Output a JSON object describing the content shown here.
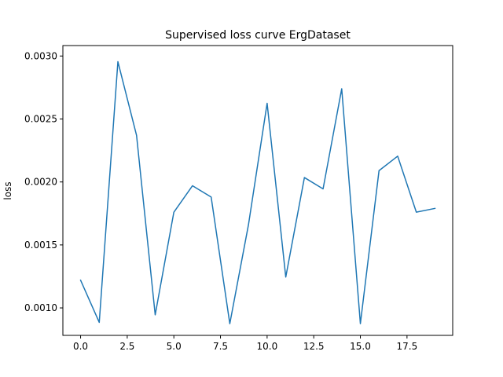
{
  "chart_data": {
    "type": "line",
    "title": "Supervised loss curve ErgDataset",
    "xlabel": "",
    "ylabel": "loss",
    "xlim": [
      -0.95,
      19.95
    ],
    "ylim": [
      0.000782,
      0.003083
    ],
    "xticks": [
      0,
      2.5,
      5,
      7.5,
      10,
      12.5,
      15,
      17.5
    ],
    "xtick_labels": [
      "0.0",
      "2.5",
      "5.0",
      "7.5",
      "10.0",
      "12.5",
      "15.0",
      "17.5"
    ],
    "yticks": [
      0.001,
      0.0015,
      0.002,
      0.0025,
      0.003
    ],
    "ytick_labels": [
      "0.0010",
      "0.0015",
      "0.0020",
      "0.0025",
      "0.0030"
    ],
    "grid": false,
    "series": [
      {
        "color": "#1f77b4",
        "x": [
          0,
          1,
          2,
          3,
          4,
          5,
          6,
          7,
          8,
          9,
          10,
          11,
          12,
          13,
          14,
          15,
          16,
          17,
          18,
          19
        ],
        "y": [
          0.00122,
          0.000885,
          0.002955,
          0.00237,
          0.000945,
          0.00176,
          0.00197,
          0.00188,
          0.000875,
          0.00166,
          0.002625,
          0.001245,
          0.002035,
          0.001945,
          0.00274,
          0.000875,
          0.00209,
          0.002205,
          0.00176,
          0.00179
        ]
      }
    ]
  }
}
